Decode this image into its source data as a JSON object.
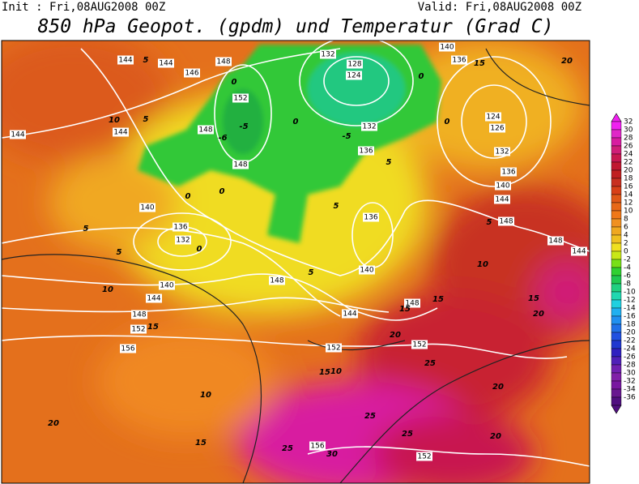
{
  "header": {
    "init": "Init : Fri,08AUG2008 00Z",
    "valid": "Valid: Fri,08AUG2008 00Z",
    "title": "850 hPa Geopot. (gpdm) und Temperatur (Grad C)"
  },
  "geopot_labels": [
    144,
    144,
    146,
    148,
    152,
    148,
    144,
    144,
    148,
    140,
    136,
    132,
    140,
    144,
    148,
    152,
    156,
    148,
    140,
    144,
    148,
    152,
    152,
    136,
    132,
    128,
    124,
    132,
    136,
    140,
    136,
    124,
    126,
    132,
    136,
    140,
    144,
    148,
    148,
    144,
    156,
    152
  ],
  "temp_labels": [
    5,
    -5,
    -6,
    0,
    0,
    5,
    10,
    5,
    5,
    10,
    15,
    0,
    0,
    0,
    5,
    5,
    -5,
    0,
    0,
    5,
    15,
    20,
    5,
    10,
    15,
    15,
    20,
    15,
    20,
    10,
    15,
    25,
    20,
    10,
    20,
    15,
    25,
    30,
    25,
    25,
    20
  ],
  "colorbar": {
    "labels": [
      32,
      30,
      28,
      26,
      24,
      22,
      20,
      18,
      16,
      14,
      12,
      10,
      8,
      6,
      4,
      2,
      0,
      -2,
      -4,
      -6,
      -8,
      -10,
      -12,
      -14,
      -16,
      -18,
      -20,
      -22,
      -24,
      -26,
      -28,
      -30,
      -32,
      -34,
      -36
    ],
    "colors": [
      "#f020f0",
      "#e028c8",
      "#d81ca0",
      "#d01e78",
      "#c81850",
      "#c01830",
      "#c02020",
      "#c83020",
      "#d84018",
      "#e05818",
      "#e86818",
      "#f07818",
      "#f09020",
      "#f0a820",
      "#f0c020",
      "#f0e020",
      "#c8e818",
      "#78e018",
      "#30d030",
      "#20c850",
      "#20d080",
      "#20d8b0",
      "#20d0e0",
      "#20b0f0",
      "#2090f0",
      "#2070e8",
      "#2050e0",
      "#2038d0",
      "#3020c0",
      "#5020b8",
      "#7020b0",
      "#8020a8",
      "#7818a0",
      "#681890",
      "#501080"
    ]
  }
}
